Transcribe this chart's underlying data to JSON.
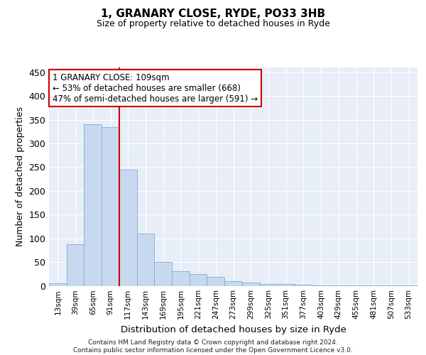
{
  "title": "1, GRANARY CLOSE, RYDE, PO33 3HB",
  "subtitle": "Size of property relative to detached houses in Ryde",
  "xlabel": "Distribution of detached houses by size in Ryde",
  "ylabel": "Number of detached properties",
  "bar_color": "#c8d9ef",
  "bar_edge_color": "#7aadd4",
  "categories": [
    "13sqm",
    "39sqm",
    "65sqm",
    "91sqm",
    "117sqm",
    "143sqm",
    "169sqm",
    "195sqm",
    "221sqm",
    "247sqm",
    "273sqm",
    "299sqm",
    "325sqm",
    "351sqm",
    "377sqm",
    "403sqm",
    "429sqm",
    "455sqm",
    "481sqm",
    "507sqm",
    "533sqm"
  ],
  "values": [
    5,
    88,
    340,
    335,
    245,
    110,
    50,
    30,
    24,
    19,
    9,
    6,
    4,
    3,
    2,
    1,
    1,
    0.5,
    0.5,
    0.5,
    0.5
  ],
  "vline_index": 3.5,
  "vline_color": "#cc0000",
  "annotation_text": "1 GRANARY CLOSE: 109sqm\n← 53% of detached houses are smaller (668)\n47% of semi-detached houses are larger (591) →",
  "annotation_box_color": "#ffffff",
  "annotation_edge_color": "#cc0000",
  "ylim": [
    0,
    460
  ],
  "yticks": [
    0,
    50,
    100,
    150,
    200,
    250,
    300,
    350,
    400,
    450
  ],
  "footer": "Contains HM Land Registry data © Crown copyright and database right 2024.\nContains public sector information licensed under the Open Government Licence v3.0.",
  "background_color": "#e8eef8",
  "fig_background": "#ffffff"
}
